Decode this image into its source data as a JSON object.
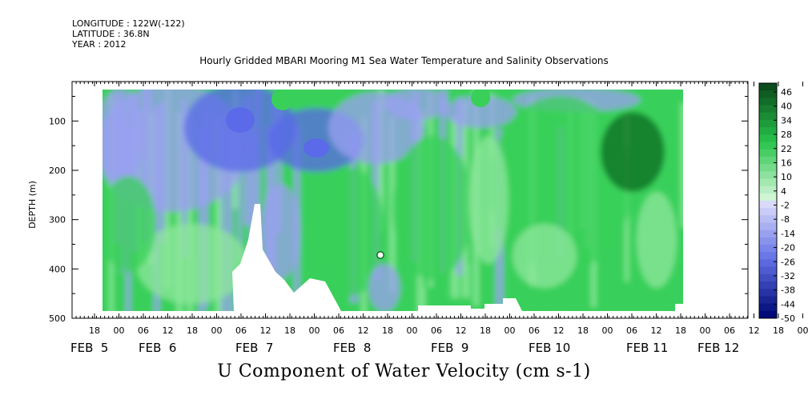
{
  "meta": {
    "longitude": "LONGITUDE : 122W(-122)",
    "latitude": "LATITUDE : 36.8N",
    "year": "YEAR : 2012"
  },
  "chart_data": {
    "type": "heatmap",
    "title": "Hourly Gridded MBARI Mooring M1 Sea Water Temperature and Salinity Observations",
    "xlabel": "U Component of Water Velocity (cm s-1)",
    "ylabel": "DEPTH (m)",
    "ylim": [
      500,
      20
    ],
    "y_ticks": [
      100,
      200,
      300,
      400,
      500
    ],
    "x_hour_ticks": [
      "18",
      "00",
      "06",
      "12",
      "18",
      "00",
      "06",
      "12",
      "18",
      "00",
      "06",
      "12",
      "18",
      "00",
      "06",
      "12",
      "18",
      "00",
      "06",
      "12",
      "18",
      "00",
      "06",
      "12",
      "18",
      "00",
      "06",
      "12",
      "18",
      "00",
      "06"
    ],
    "x_date_labels": [
      "FEB  5",
      "FEB  6",
      "FEB  7",
      "FEB  8",
      "FEB  9",
      "FEB 10",
      "FEB 11",
      "FEB 12"
    ],
    "colorbar_levels": [
      "46",
      "40",
      "34",
      "28",
      "22",
      "16",
      "10",
      "4",
      "-2",
      "-8",
      "-14",
      "-20",
      "-26",
      "-32",
      "-38",
      "-44",
      "-50"
    ],
    "colors": {
      "strong_positive": "#0c6b1f",
      "positive": "#39d05a",
      "weak_positive": "#8fe79e",
      "weak_negative": "#9aa0f2",
      "negative": "#5a6ae8",
      "strong_negative": "#1e3fd0"
    }
  }
}
